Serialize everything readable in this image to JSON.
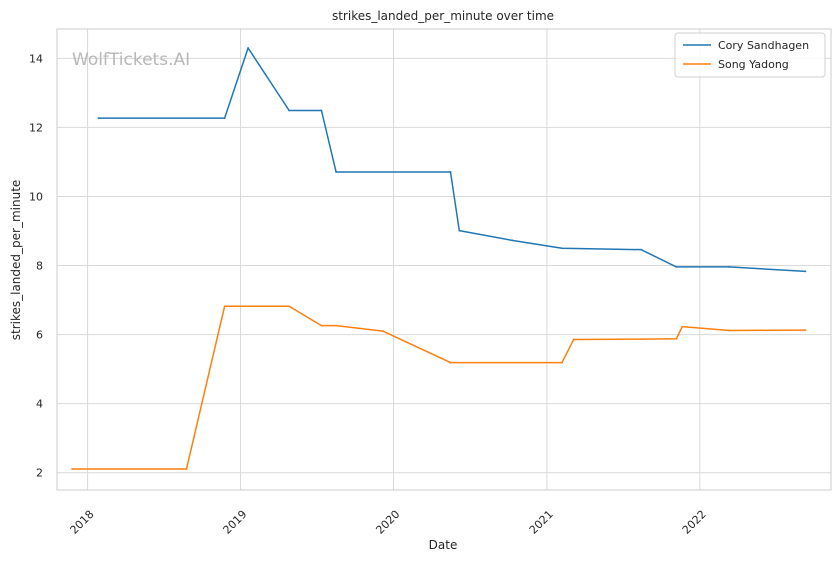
{
  "chart_data": {
    "type": "line",
    "title": "strikes_landed_per_minute over time",
    "xlabel": "Date",
    "ylabel": "strikes_landed_per_minute",
    "watermark": "WolfTickets.AI",
    "grid": true,
    "legend_position": "top-right",
    "xlim": [
      "2017-10-20",
      "2022-11-10"
    ],
    "ylim": [
      1.5,
      14.85
    ],
    "x_ticks": [
      {
        "value": "2018-01-01",
        "label": "2018"
      },
      {
        "value": "2019-01-01",
        "label": "2019"
      },
      {
        "value": "2020-01-01",
        "label": "2020"
      },
      {
        "value": "2021-01-01",
        "label": "2021"
      },
      {
        "value": "2022-01-01",
        "label": "2022"
      }
    ],
    "y_ticks": [
      2,
      4,
      6,
      8,
      10,
      12,
      14
    ],
    "series": [
      {
        "name": "Cory Sandhagen",
        "color": "#1f77b4",
        "points": [
          {
            "x": "2018-01-27",
            "y": 12.27
          },
          {
            "x": "2018-11-24",
            "y": 12.27
          },
          {
            "x": "2019-01-19",
            "y": 14.3
          },
          {
            "x": "2019-04-27",
            "y": 12.49
          },
          {
            "x": "2019-07-13",
            "y": 12.49
          },
          {
            "x": "2019-08-17",
            "y": 10.71
          },
          {
            "x": "2020-05-16",
            "y": 10.71
          },
          {
            "x": "2020-06-06",
            "y": 9.01
          },
          {
            "x": "2020-10-10",
            "y": 8.73
          },
          {
            "x": "2021-02-06",
            "y": 8.5
          },
          {
            "x": "2021-08-14",
            "y": 8.46
          },
          {
            "x": "2021-11-06",
            "y": 7.96
          },
          {
            "x": "2022-03-12",
            "y": 7.96
          },
          {
            "x": "2022-09-10",
            "y": 7.83
          }
        ]
      },
      {
        "name": "Song Yadong",
        "color": "#ff7f0e",
        "points": [
          {
            "x": "2017-11-25",
            "y": 2.11
          },
          {
            "x": "2018-08-25",
            "y": 2.11
          },
          {
            "x": "2018-11-24",
            "y": 6.82
          },
          {
            "x": "2019-04-27",
            "y": 6.82
          },
          {
            "x": "2019-07-13",
            "y": 6.26
          },
          {
            "x": "2019-08-17",
            "y": 6.26
          },
          {
            "x": "2019-12-07",
            "y": 6.1
          },
          {
            "x": "2020-05-16",
            "y": 5.19
          },
          {
            "x": "2021-02-06",
            "y": 5.19
          },
          {
            "x": "2021-03-06",
            "y": 5.86
          },
          {
            "x": "2021-08-14",
            "y": 5.87
          },
          {
            "x": "2021-11-06",
            "y": 5.88
          },
          {
            "x": "2021-11-20",
            "y": 6.23
          },
          {
            "x": "2022-03-12",
            "y": 6.12
          },
          {
            "x": "2022-09-10",
            "y": 6.13
          }
        ]
      }
    ]
  }
}
